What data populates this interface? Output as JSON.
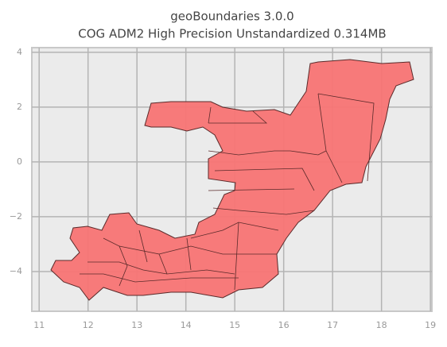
{
  "chart_data": {
    "type": "map",
    "title": [
      "geoBoundaries 3.0.0",
      "COG ADM2 High Precision Unstandardized 0.314MB"
    ],
    "xlim": [
      10.85,
      19.03
    ],
    "ylim": [
      -5.45,
      4.17
    ],
    "xticks": [
      11,
      12,
      13,
      14,
      15,
      16,
      17,
      18,
      19
    ],
    "yticks": [
      {
        "value": -4,
        "label": "−4"
      },
      {
        "value": -2,
        "label": "−2"
      },
      0,
      2,
      4
    ],
    "grid": true,
    "color": "#f87474"
  }
}
